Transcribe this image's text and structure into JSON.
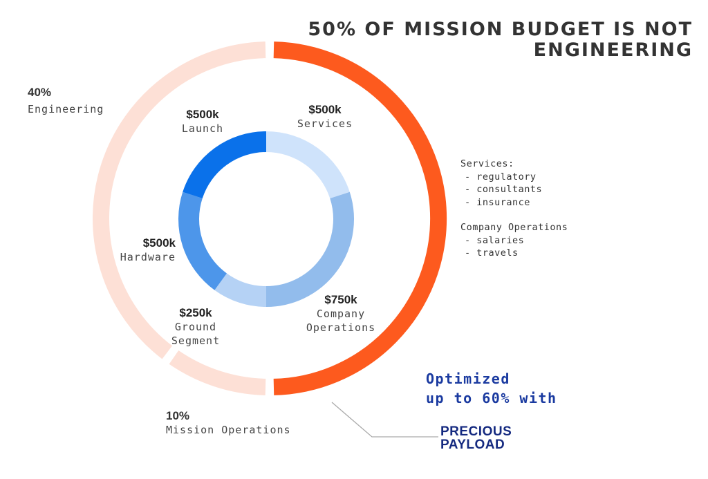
{
  "title": "50% OF MISSION BUDGET IS NOT ENGINEERING",
  "chart_data": [
    {
      "type": "donut",
      "name": "outer",
      "slices": [
        {
          "label": "Engineering",
          "percent": 40,
          "color": "#fde0d6"
        },
        {
          "label": "Mission Operations",
          "percent": 10,
          "color": "#fde0d6"
        },
        {
          "label": "",
          "percent": 50,
          "color": "#fd5a1e"
        }
      ]
    },
    {
      "type": "donut",
      "name": "inner",
      "slices": [
        {
          "label": "Services",
          "value": "$500k",
          "amount": 500,
          "color": "#cfe3fb"
        },
        {
          "label": "Company Operations",
          "value": "$750k",
          "amount": 750,
          "color": "#92bcec"
        },
        {
          "label": "Ground Segment",
          "value": "$250k",
          "amount": 250,
          "color": "#b5d2f5"
        },
        {
          "label": "Hardware",
          "value": "$500k",
          "amount": 500,
          "color": "#4d96ea"
        },
        {
          "label": "Launch",
          "value": "$500k",
          "amount": 500,
          "color": "#0a71ea"
        }
      ]
    }
  ],
  "outer_labels": {
    "engineering": {
      "pct": "40%",
      "name": "Engineering"
    },
    "mission_ops": {
      "pct": "10%",
      "name": "Mission Operations"
    }
  },
  "inner_labels": {
    "launch": {
      "value": "$500k",
      "name": "Launch"
    },
    "services": {
      "value": "$500k",
      "name": "Services"
    },
    "hardware": {
      "value": "$500k",
      "name": "Hardware"
    },
    "ground": {
      "value": "$250k",
      "name1": "Ground",
      "name2": "Segment"
    },
    "company": {
      "value": "$750k",
      "name1": "Company",
      "name2": "Operations"
    }
  },
  "notes": {
    "services_heading": "Services:",
    "services_items": [
      "- regulatory",
      "- consultants",
      "- insurance"
    ],
    "company_heading": "Company Operations",
    "company_items": [
      "- salaries",
      "- travels"
    ]
  },
  "promo": {
    "line1": "Optimized",
    "line2": "up to 60% with"
  },
  "logo": {
    "line1": "PRECIOUS",
    "line2": "PAYLOAD"
  }
}
